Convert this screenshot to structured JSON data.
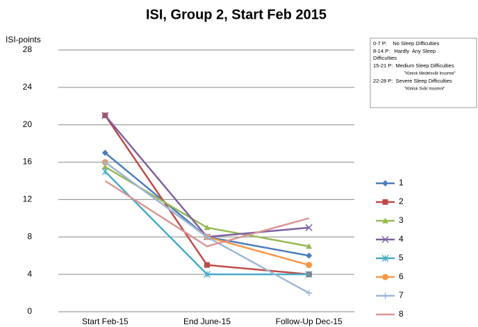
{
  "chart_data": {
    "type": "line",
    "title": "ISI, Group 2, Start Feb 2015",
    "y_label": "ISI-points",
    "categories": [
      "Start Feb-15",
      "End June-15",
      "Follow-Up Dec-15"
    ],
    "series": [
      {
        "name": "1",
        "color": "#4a7ebb",
        "marker": "diamond",
        "values": [
          17,
          8,
          6
        ]
      },
      {
        "name": "2",
        "color": "#be4b48",
        "marker": "square",
        "values": [
          21,
          5,
          4
        ]
      },
      {
        "name": "3",
        "color": "#98b954",
        "marker": "triangle",
        "values": [
          15.5,
          9,
          7
        ]
      },
      {
        "name": "4",
        "color": "#7d60a0",
        "marker": "x",
        "values": [
          21,
          8,
          9
        ]
      },
      {
        "name": "5",
        "color": "#46aac5",
        "marker": "asterisk",
        "values": [
          15,
          4,
          4
        ]
      },
      {
        "name": "6",
        "color": "#f79646",
        "marker": "circle",
        "values": [
          16,
          8,
          5
        ]
      },
      {
        "name": "7",
        "color": "#9bb7d9",
        "marker": "plus",
        "values": [
          16,
          8,
          2
        ]
      },
      {
        "name": "8",
        "color": "#d99694",
        "marker": "none",
        "values": [
          14,
          7,
          10
        ]
      }
    ],
    "ylim": [
      0,
      28
    ],
    "yticks": [
      0,
      4,
      8,
      12,
      16,
      20,
      24,
      28
    ],
    "grid": true,
    "legend": "right",
    "annotations": [
      "0-7 P:    No Sleep Difficulties",
      "8-14 P:   Hardly  Any Sleep",
      "Difficulties",
      "15-21 P:  Medium Sleep Difficulties",
      "\"Klinisk Medelsvår Insomni\"",
      "22-28 P:  Severe Sleep Difficulties",
      "\"Klinisk Svår Insomni\""
    ]
  }
}
